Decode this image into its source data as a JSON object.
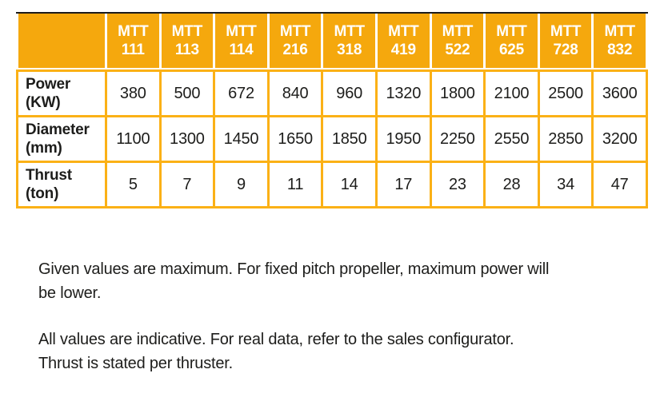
{
  "colors": {
    "header_fill": "#F5A80D",
    "grid_line": "#FBB116",
    "top_rule": "#1B1B1B",
    "header_text": "#FFFFFF",
    "body_text": "#1D1D1B",
    "background": "#FFFFFF"
  },
  "table": {
    "corner_label": "",
    "columns": [
      {
        "line1": "MTT",
        "line2": "111"
      },
      {
        "line1": "MTT",
        "line2": "113"
      },
      {
        "line1": "MTT",
        "line2": "114"
      },
      {
        "line1": "MTT",
        "line2": "216"
      },
      {
        "line1": "MTT",
        "line2": "318"
      },
      {
        "line1": "MTT",
        "line2": "419"
      },
      {
        "line1": "MTT",
        "line2": "522"
      },
      {
        "line1": "MTT",
        "line2": "625"
      },
      {
        "line1": "MTT",
        "line2": "728"
      },
      {
        "line1": "MTT",
        "line2": "832"
      }
    ],
    "rows": [
      {
        "label": "Power",
        "unit": "(KW)",
        "values": [
          "380",
          "500",
          "672",
          "840",
          "960",
          "1320",
          "1800",
          "2100",
          "2500",
          "3600"
        ]
      },
      {
        "label": "Diameter",
        "unit": "(mm)",
        "values": [
          "1100",
          "1300",
          "1450",
          "1650",
          "1850",
          "1950",
          "2250",
          "2550",
          "2850",
          "3200"
        ]
      },
      {
        "label": "Thrust",
        "unit": "(ton)",
        "values": [
          "5",
          "7",
          "9",
          "11",
          "14",
          "17",
          "23",
          "28",
          "34",
          "47"
        ]
      }
    ]
  },
  "notes": [
    {
      "lines": [
        "Given values are maximum. For fixed pitch propeller, maximum power will",
        "be lower."
      ]
    },
    {
      "lines": [
        "All values are indicative. For real data, refer to the sales configurator.",
        "Thrust is stated per thruster."
      ]
    }
  ]
}
